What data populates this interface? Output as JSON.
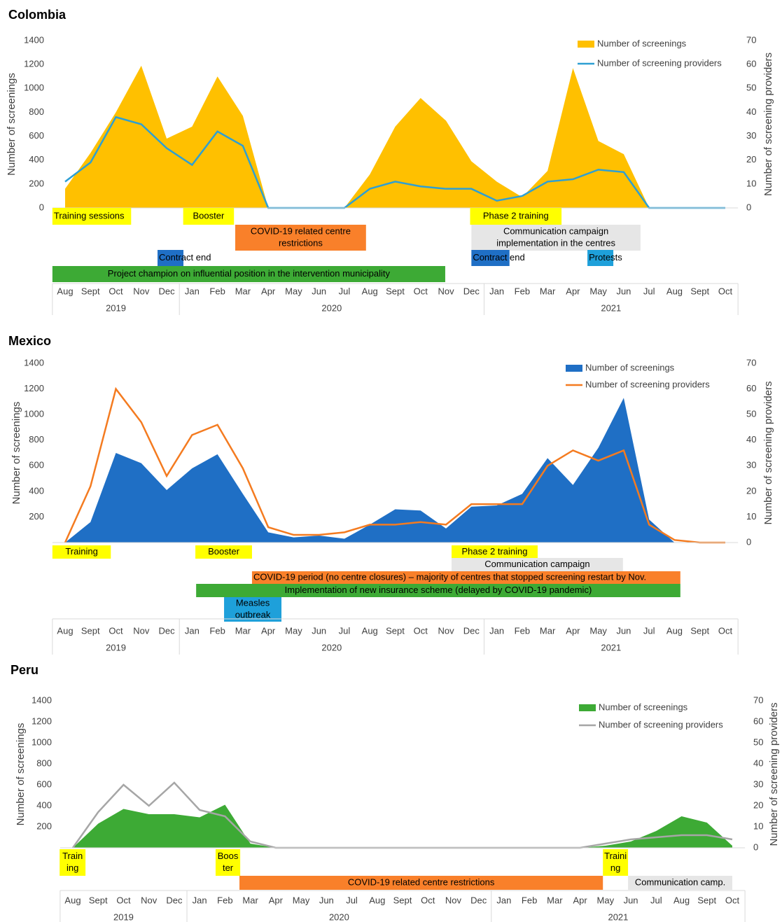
{
  "chart_data": [
    {
      "type": "area_line",
      "title": "Colombia",
      "categories": [
        "Aug",
        "Sept",
        "Oct",
        "Nov",
        "Dec",
        "Jan",
        "Feb",
        "Mar",
        "Apr",
        "May",
        "Jun",
        "Jul",
        "Aug",
        "Sept",
        "Oct",
        "Nov",
        "Dec",
        "Jan",
        "Feb",
        "Mar",
        "Apr",
        "May",
        "Jun",
        "Jul",
        "Aug",
        "Sept",
        "Oct"
      ],
      "year_groups": [
        {
          "label": "2019",
          "months": 5
        },
        {
          "label": "2020",
          "months": 12
        },
        {
          "label": "2021",
          "months": 10
        }
      ],
      "y_label": "Number of screenings",
      "y2_label": "Number of screening providers",
      "ylim": [
        0,
        1400
      ],
      "yticks": [
        0,
        200,
        400,
        600,
        800,
        1000,
        1200,
        1400
      ],
      "y2lim": [
        0,
        70
      ],
      "y2ticks": [
        0,
        10,
        20,
        30,
        40,
        50,
        60,
        70
      ],
      "legend": "upper right",
      "series": [
        {
          "name": "Number of screenings",
          "kind": "area",
          "color": "#FFC000",
          "values": [
            160,
            460,
            800,
            1190,
            580,
            680,
            1100,
            770,
            0,
            0,
            0,
            0,
            280,
            680,
            920,
            730,
            390,
            220,
            90,
            310,
            1170,
            560,
            450,
            0,
            0,
            0,
            0
          ]
        },
        {
          "name": "Number of screening providers",
          "kind": "line",
          "axis": "y2",
          "color": "#2E9FD3",
          "values": [
            11,
            19,
            38,
            35,
            25,
            18,
            32,
            26,
            0,
            0,
            0,
            0,
            8,
            11,
            9,
            8,
            8,
            3,
            5,
            11,
            12,
            16,
            15,
            0,
            0,
            0,
            0
          ]
        }
      ],
      "annotation_rows": [
        [
          {
            "label": [
              "Training sessions"
            ],
            "start": -0.5,
            "end": 2.6,
            "color": "#FFFF00"
          },
          {
            "label": [
              "Booster"
            ],
            "start": 4.65,
            "end": 6.65,
            "color": "#FFFF00"
          },
          {
            "label": [
              "Phase 2 training"
            ],
            "start": 15.95,
            "end": 19.55,
            "color": "#FFFF00"
          }
        ],
        [
          {
            "label": [
              "COVID-19 related centre",
              "restrictions"
            ],
            "start": 6.7,
            "end": 11.85,
            "color": "#F9802A"
          },
          {
            "label": [
              "Communication campaign",
              "implementation in the centres"
            ],
            "start": 16.0,
            "end": 22.66,
            "color": "#E6E6E6"
          }
        ],
        [
          {
            "label": [
              "Contract end"
            ],
            "start": 3.64,
            "end": 4.66,
            "color": "#1F6FC5"
          },
          {
            "label": [
              "Contract end"
            ],
            "start": 16.0,
            "end": 17.5,
            "color": "#1F6FC5"
          },
          {
            "label": [
              "Protests"
            ],
            "start": 20.57,
            "end": 21.59,
            "color": "#1EA0DA"
          }
        ],
        [
          {
            "label": [
              "Project champion on influential position in the intervention municipality"
            ],
            "start": -0.5,
            "end": 14.97,
            "color": "#3DAA35"
          }
        ]
      ]
    },
    {
      "type": "area_line",
      "title": "Mexico",
      "categories": [
        "Aug",
        "Sept",
        "Oct",
        "Nov",
        "Dec",
        "Jan",
        "Feb",
        "Mar",
        "Apr",
        "May",
        "Jun",
        "Jul",
        "Aug",
        "Sept",
        "Oct",
        "Nov",
        "Dec",
        "Jan",
        "Feb",
        "Mar",
        "Apr",
        "May",
        "Jun",
        "Jul",
        "Aug",
        "Sept",
        "Oct"
      ],
      "year_groups": [
        {
          "label": "2019",
          "months": 5
        },
        {
          "label": "2020",
          "months": 12
        },
        {
          "label": "2021",
          "months": 10
        }
      ],
      "y_label": "Number of screenings",
      "y2_label": "Number of screening providers",
      "ylim": [
        0,
        1400
      ],
      "yticks": [
        200,
        400,
        600,
        800,
        1000,
        1200,
        1400
      ],
      "y2lim": [
        0,
        70
      ],
      "y2ticks": [
        0,
        10,
        20,
        30,
        40,
        50,
        60,
        70
      ],
      "legend": "upper right",
      "series": [
        {
          "name": "Number of screenings",
          "kind": "area",
          "color": "#1F6FC5",
          "values": [
            0,
            160,
            700,
            620,
            410,
            580,
            690,
            380,
            80,
            40,
            55,
            30,
            140,
            260,
            250,
            110,
            280,
            290,
            380,
            660,
            450,
            740,
            1130,
            180,
            0,
            0,
            0
          ]
        },
        {
          "name": "Number of screening providers",
          "kind": "line",
          "axis": "y2",
          "color": "#F47B20",
          "values": [
            0,
            22,
            60,
            47,
            26,
            42,
            46,
            29,
            6,
            3,
            3,
            4,
            7,
            7,
            8,
            7,
            15,
            15,
            15,
            30,
            36,
            32,
            36,
            7,
            1,
            0,
            0
          ]
        }
      ],
      "annotation_rows": [
        [
          {
            "label": [
              "Training"
            ],
            "start": -0.5,
            "end": 1.8,
            "color": "#FFFF00"
          },
          {
            "label": [
              "Booster"
            ],
            "start": 5.13,
            "end": 7.36,
            "color": "#FFFF00"
          },
          {
            "label": [
              "Phase 2 training"
            ],
            "start": 15.22,
            "end": 18.61,
            "color": "#FFFF00"
          }
        ],
        [
          {
            "label": [
              "Communication campaign"
            ],
            "start": 15.22,
            "end": 21.97,
            "color": "#E6E6E6"
          }
        ],
        [
          {
            "label": [
              "COVID-19 period (no centre closures) – majority of centres that stopped screening restart by Nov."
            ],
            "start": 7.36,
            "end": 24.23,
            "color": "#F9802A"
          }
        ],
        [
          {
            "label": [
              "Implementation of new insurance scheme (delayed by COVID-19 pandemic)"
            ],
            "start": 5.16,
            "end": 24.23,
            "color": "#3DAA35"
          }
        ],
        [
          {
            "label": [
              "Measles",
              "outbreak"
            ],
            "start": 6.26,
            "end": 8.52,
            "color": "#1EA0DA"
          }
        ]
      ]
    },
    {
      "type": "area_line",
      "title": "Peru",
      "categories": [
        "Aug",
        "Sept",
        "Oct",
        "Nov",
        "Dec",
        "Jan",
        "Feb",
        "Mar",
        "Apr",
        "May",
        "Jun",
        "Jul",
        "Aug",
        "Sept",
        "Oct",
        "Nov",
        "Dec",
        "Jan",
        "Feb",
        "Mar",
        "Apr",
        "May",
        "Jun",
        "Jul",
        "Aug",
        "Sept",
        "Oct"
      ],
      "year_groups": [
        {
          "label": "2019",
          "months": 5
        },
        {
          "label": "2020",
          "months": 12
        },
        {
          "label": "2021",
          "months": 10
        }
      ],
      "y_label": "Number of screenings",
      "y2_label": "Number of screening providers",
      "ylim": [
        0,
        1400
      ],
      "yticks": [
        200,
        400,
        600,
        800,
        1000,
        1200,
        1400
      ],
      "y2lim": [
        0,
        70
      ],
      "y2ticks": [
        0,
        10,
        20,
        30,
        40,
        50,
        60,
        70
      ],
      "legend": "upper right",
      "series": [
        {
          "name": "Number of screenings",
          "kind": "area",
          "color": "#3DAA35",
          "values": [
            0,
            230,
            370,
            320,
            320,
            290,
            410,
            40,
            0,
            0,
            0,
            0,
            0,
            0,
            0,
            0,
            0,
            0,
            0,
            0,
            0,
            20,
            60,
            160,
            300,
            240,
            20
          ]
        },
        {
          "name": "Number of screening providers",
          "kind": "line",
          "axis": "y2",
          "color": "#A6A6A6",
          "values": [
            0,
            17,
            30,
            20,
            31,
            18,
            15,
            3,
            0,
            0,
            0,
            0,
            0,
            0,
            0,
            0,
            0,
            0,
            0,
            0,
            0,
            2,
            4,
            5,
            6,
            6,
            4
          ]
        }
      ],
      "annotation_rows": [
        [
          {
            "label": [
              "Train",
              "ing"
            ],
            "start": -0.52,
            "end": 0.5,
            "color": "#FFFF00"
          },
          {
            "label": [
              "Boos",
              "ter"
            ],
            "start": 5.63,
            "end": 6.6,
            "color": "#FFFF00"
          },
          {
            "label": [
              "Traini",
              "ng"
            ],
            "start": 20.9,
            "end": 21.89,
            "color": "#FFFF00"
          }
        ],
        [
          {
            "label": [
              "COVID-19 related centre restrictions"
            ],
            "start": 6.57,
            "end": 20.9,
            "color": "#F9802A"
          },
          {
            "label": [
              "Communication camp."
            ],
            "start": 21.89,
            "end": 26.0,
            "color": "#E6E6E6"
          }
        ]
      ]
    }
  ]
}
